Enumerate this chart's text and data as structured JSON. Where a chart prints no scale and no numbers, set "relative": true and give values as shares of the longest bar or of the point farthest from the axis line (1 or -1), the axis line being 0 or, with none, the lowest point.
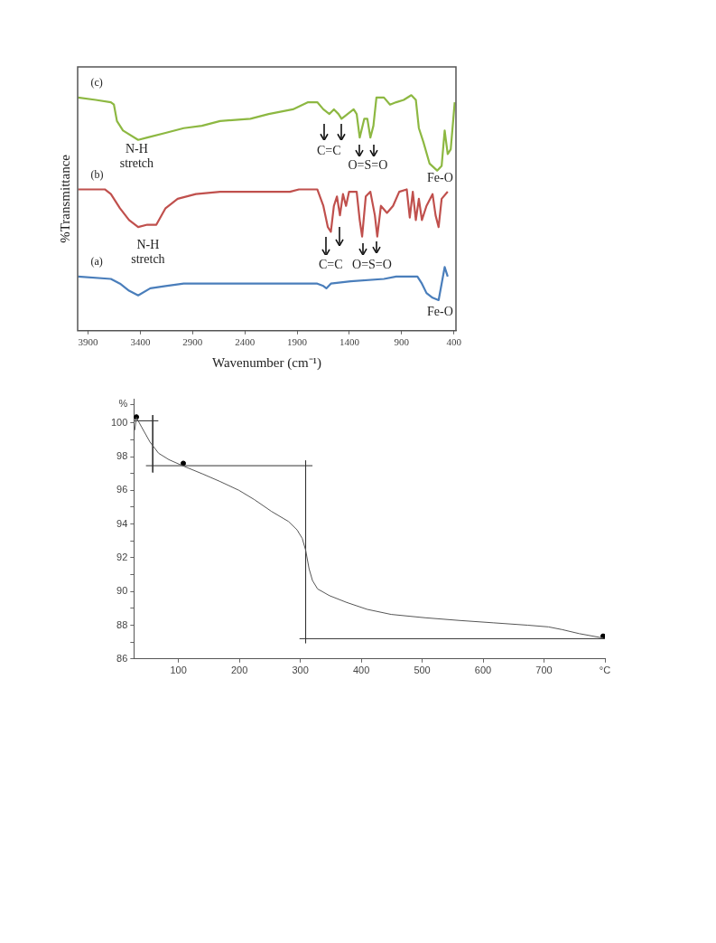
{
  "chart_data": [
    {
      "type": "line",
      "relative": true,
      "xlabel": "Wavenumber (cm⁻¹)",
      "ylabel": "%Transmittance",
      "xlim": [
        4000,
        380
      ],
      "xticks": [
        3900,
        3400,
        2900,
        2400,
        1900,
        1400,
        900,
        400
      ],
      "series": [
        {
          "name": "(c)",
          "color": "#8db842",
          "x": [
            3996,
            3827,
            3682,
            3653,
            3624,
            3566,
            3421,
            3334,
            3159,
            2985,
            2811,
            2637,
            2347,
            2172,
            1940,
            1795,
            1707,
            1649,
            1591,
            1548,
            1504,
            1475,
            1417,
            1359,
            1330,
            1301,
            1257,
            1228,
            1199,
            1170,
            1141,
            1069,
            1011,
            952,
            880,
            807,
            764,
            735,
            691,
            633,
            560,
            517,
            488,
            459,
            430,
            392
          ],
          "values": [
            0.99,
            0.98,
            0.97,
            0.96,
            0.89,
            0.85,
            0.81,
            0.82,
            0.84,
            0.86,
            0.87,
            0.89,
            0.9,
            0.92,
            0.94,
            0.97,
            0.97,
            0.94,
            0.92,
            0.94,
            0.92,
            0.9,
            0.92,
            0.94,
            0.92,
            0.82,
            0.9,
            0.9,
            0.82,
            0.87,
            0.99,
            0.99,
            0.96,
            0.97,
            0.98,
            1.0,
            0.98,
            0.86,
            0.8,
            0.71,
            0.68,
            0.7,
            0.85,
            0.75,
            0.77,
            0.97
          ]
        },
        {
          "name": "(b)",
          "color": "#c0504d",
          "x": [
            3996,
            3740,
            3682,
            3595,
            3508,
            3421,
            3334,
            3247,
            3159,
            3043,
            2869,
            2637,
            2230,
            1969,
            1882,
            1707,
            1649,
            1606,
            1577,
            1548,
            1519,
            1490,
            1461,
            1432,
            1403,
            1330,
            1301,
            1278,
            1243,
            1199,
            1156,
            1133,
            1098,
            1040,
            982,
            923,
            851,
            822,
            793,
            764,
            735,
            706,
            662,
            604,
            575,
            546,
            517,
            459
          ],
          "values": [
            0.6,
            0.6,
            0.58,
            0.52,
            0.47,
            0.44,
            0.45,
            0.45,
            0.52,
            0.56,
            0.58,
            0.59,
            0.59,
            0.59,
            0.6,
            0.6,
            0.53,
            0.44,
            0.42,
            0.53,
            0.57,
            0.49,
            0.58,
            0.53,
            0.59,
            0.59,
            0.47,
            0.4,
            0.57,
            0.59,
            0.49,
            0.4,
            0.53,
            0.5,
            0.53,
            0.59,
            0.6,
            0.48,
            0.59,
            0.47,
            0.56,
            0.47,
            0.53,
            0.58,
            0.49,
            0.44,
            0.56,
            0.59
          ]
        },
        {
          "name": "(a)",
          "color": "#4a7ebb",
          "x": [
            3996,
            3682,
            3595,
            3508,
            3421,
            3305,
            3159,
            2985,
            2753,
            2230,
            1707,
            1649,
            1620,
            1577,
            1388,
            1069,
            952,
            749,
            706,
            662,
            604,
            546,
            517,
            488,
            459
          ],
          "values": [
            0.23,
            0.22,
            0.2,
            0.17,
            0.15,
            0.18,
            0.19,
            0.2,
            0.2,
            0.2,
            0.2,
            0.19,
            0.18,
            0.2,
            0.21,
            0.22,
            0.23,
            0.23,
            0.2,
            0.16,
            0.14,
            0.13,
            0.2,
            0.27,
            0.23
          ]
        }
      ],
      "annotations": [
        "N-H stretch",
        "N-H stretch",
        "C=C",
        "C=C",
        "O=S=O",
        "O=S=O",
        "Fe-O",
        "Fe-O"
      ]
    },
    {
      "type": "line",
      "xlim": [
        27,
        800
      ],
      "ylim": [
        86,
        101.4
      ],
      "xticks": [
        100,
        200,
        300,
        400,
        500,
        600,
        700,
        {
          "value": 800,
          "label": "°C"
        }
      ],
      "yticks": [
        86,
        {
          "value": 87,
          "label": null
        },
        88,
        {
          "value": 89,
          "label": null
        },
        90,
        {
          "value": 91,
          "label": null
        },
        92,
        {
          "value": 93,
          "label": null
        },
        94,
        {
          "value": 95,
          "label": null
        },
        96,
        {
          "value": 97,
          "label": null
        },
        98,
        {
          "value": 99,
          "label": null
        },
        100,
        {
          "value": 101.1,
          "label": "%"
        }
      ],
      "series": [
        {
          "color": "#555555",
          "x": [
            28.2,
            31.0,
            39.4,
            53.4,
            67.4,
            84.3,
            106.7,
            140.4,
            168.5,
            199.3,
            224.6,
            252.7,
            280.7,
            294.8,
            303.2,
            308.8,
            314.4,
            320.0,
            328.4,
            348.1,
            376.1,
            409.8,
            449.1,
            505.2,
            561.4,
            617.5,
            673.6,
            707.3,
            729.7,
            757.8,
            797.1
          ],
          "values": [
            99.56,
            100.32,
            99.76,
            98.86,
            98.2,
            97.82,
            97.46,
            96.96,
            96.52,
            96.0,
            95.45,
            94.75,
            94.15,
            93.65,
            93.15,
            92.45,
            91.35,
            90.65,
            90.15,
            89.75,
            89.35,
            88.94,
            88.64,
            88.44,
            88.28,
            88.14,
            88.0,
            87.9,
            87.74,
            87.5,
            87.24
          ]
        },
        {
          "color": "#333333",
          "x": [
            27,
            67
          ],
          "values": [
            100.12,
            100.12
          ]
        },
        {
          "color": "#333333",
          "x": [
            57.9,
            57.9
          ],
          "values": [
            100.46,
            97.06
          ]
        },
        {
          "color": "#333333",
          "x": [
            46.7,
            320
          ],
          "values": [
            97.46,
            97.46
          ]
        },
        {
          "color": "#333333",
          "x": [
            308.8,
            308.8
          ],
          "values": [
            97.76,
            86.94
          ]
        },
        {
          "color": "#333333",
          "x": [
            298.7,
            800
          ],
          "values": [
            87.2,
            87.2
          ]
        },
        {
          "type": "scatter",
          "marker": "circle",
          "color": "#000000",
          "x": [
            31,
            108,
            797
          ],
          "values": [
            100.35,
            97.6,
            87.35
          ]
        }
      ]
    }
  ]
}
